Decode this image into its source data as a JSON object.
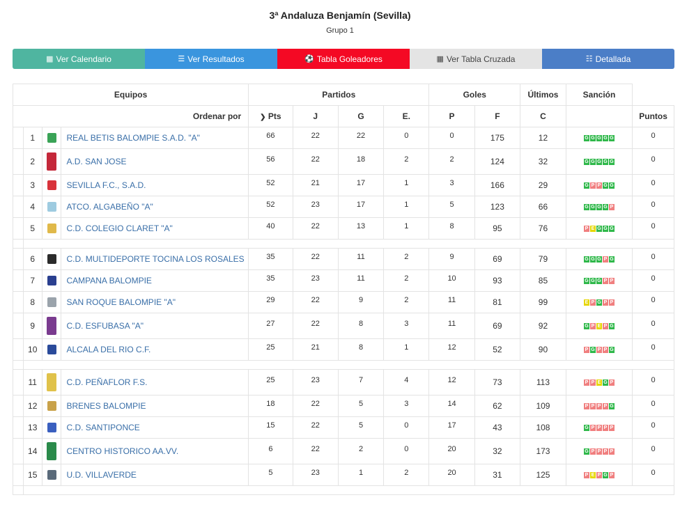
{
  "page": {
    "title": "3ª Andaluza Benjamín (Sevilla)",
    "subtitle": "Grupo 1"
  },
  "buttons": [
    {
      "icon": "calendar-icon",
      "glyph": "▦",
      "label": "Ver Calendario"
    },
    {
      "icon": "list-icon",
      "glyph": "☰",
      "label": "Ver Resultados"
    },
    {
      "icon": "soccer-ball-icon",
      "glyph": "⚽",
      "label": "Tabla Goleadores"
    },
    {
      "icon": "table-grid-icon",
      "glyph": "▦",
      "label": "Ver Tabla Cruzada"
    },
    {
      "icon": "detail-list-icon",
      "glyph": "☷",
      "label": "Detallada"
    }
  ],
  "headers": {
    "equipos": "Equipos",
    "partidos": "Partidos",
    "goles": "Goles",
    "ultimos": "Últimos",
    "sancion": "Sanción",
    "ordenar": "Ordenar por",
    "pts": "Pts",
    "j": "J",
    "g": "G",
    "e": "E.",
    "p": "P",
    "f": "F",
    "c": "C",
    "puntos": "Puntos"
  },
  "colors": {
    "win": "#2fb84a",
    "loss": "#f07f7f",
    "draw": "#e6d600",
    "link": "#3a6fa8"
  },
  "teams": [
    {
      "pos": "1",
      "name": "REAL BETIS BALOMPIE S.A.D. \"A\"",
      "pts": "66",
      "j": "22",
      "g": "22",
      "e": "0",
      "p": "0",
      "f": "175",
      "c": "12",
      "last": [
        "G",
        "G",
        "G",
        "G",
        "G"
      ],
      "sancion": "0",
      "logo": "#3aa357"
    },
    {
      "pos": "2",
      "name": "A.D. SAN JOSE",
      "pts": "56",
      "j": "22",
      "g": "18",
      "e": "2",
      "p": "2",
      "f": "124",
      "c": "32",
      "last": [
        "G",
        "G",
        "G",
        "G",
        "G"
      ],
      "sancion": "0",
      "logo": "#c4283a"
    },
    {
      "pos": "3",
      "name": "SEVILLA F.C., S.A.D.",
      "pts": "52",
      "j": "21",
      "g": "17",
      "e": "1",
      "p": "3",
      "f": "166",
      "c": "29",
      "last": [
        "G",
        "P",
        "P",
        "G",
        "G"
      ],
      "sancion": "0",
      "logo": "#d8333b"
    },
    {
      "pos": "4",
      "name": "ATCO. ALGABEÑO \"A\"",
      "pts": "52",
      "j": "23",
      "g": "17",
      "e": "1",
      "p": "5",
      "f": "123",
      "c": "66",
      "last": [
        "G",
        "G",
        "G",
        "G",
        "P"
      ],
      "sancion": "0",
      "logo": "#9ecbe0"
    },
    {
      "pos": "5",
      "name": "C.D. COLEGIO CLARET \"A\"",
      "pts": "40",
      "j": "22",
      "g": "13",
      "e": "1",
      "p": "8",
      "f": "95",
      "c": "76",
      "last": [
        "P",
        "E",
        "G",
        "G",
        "G"
      ],
      "sancion": "0",
      "logo": "#e0b94a"
    },
    {
      "pos": "6",
      "name": "C.D. MULTIDEPORTE TOCINA LOS ROSALES",
      "pts": "35",
      "j": "22",
      "g": "11",
      "e": "2",
      "p": "9",
      "f": "69",
      "c": "79",
      "last": [
        "G",
        "G",
        "G",
        "P",
        "G"
      ],
      "sancion": "0",
      "logo": "#2b2b2b"
    },
    {
      "pos": "7",
      "name": "CAMPANA BALOMPIE",
      "pts": "35",
      "j": "23",
      "g": "11",
      "e": "2",
      "p": "10",
      "f": "93",
      "c": "85",
      "last": [
        "G",
        "G",
        "G",
        "P",
        "P"
      ],
      "sancion": "0",
      "logo": "#2a3f8f"
    },
    {
      "pos": "8",
      "name": "SAN ROQUE BALOMPIE \"A\"",
      "pts": "29",
      "j": "22",
      "g": "9",
      "e": "2",
      "p": "11",
      "f": "81",
      "c": "99",
      "last": [
        "E",
        "P",
        "G",
        "P",
        "P"
      ],
      "sancion": "0",
      "logo": "#9aa3ab"
    },
    {
      "pos": "9",
      "name": "C.D. ESFUBASA \"A\"",
      "pts": "27",
      "j": "22",
      "g": "8",
      "e": "3",
      "p": "11",
      "f": "69",
      "c": "92",
      "last": [
        "G",
        "P",
        "E",
        "P",
        "G"
      ],
      "sancion": "0",
      "logo": "#7a3b8f"
    },
    {
      "pos": "10",
      "name": "ALCALA DEL RIO C.F.",
      "pts": "25",
      "j": "21",
      "g": "8",
      "e": "1",
      "p": "12",
      "f": "52",
      "c": "90",
      "last": [
        "P",
        "G",
        "P",
        "P",
        "G"
      ],
      "sancion": "0",
      "logo": "#2a4a9a"
    },
    {
      "pos": "11",
      "name": "C.D. PEÑAFLOR F.S.",
      "pts": "25",
      "j": "23",
      "g": "7",
      "e": "4",
      "p": "12",
      "f": "73",
      "c": "113",
      "last": [
        "P",
        "P",
        "E",
        "G",
        "P"
      ],
      "sancion": "0",
      "logo": "#e0c24a"
    },
    {
      "pos": "12",
      "name": "BRENES BALOMPIE",
      "pts": "18",
      "j": "22",
      "g": "5",
      "e": "3",
      "p": "14",
      "f": "62",
      "c": "109",
      "last": [
        "P",
        "P",
        "P",
        "P",
        "G"
      ],
      "sancion": "0",
      "logo": "#c9a24a"
    },
    {
      "pos": "13",
      "name": "C.D. SANTIPONCE",
      "pts": "15",
      "j": "22",
      "g": "5",
      "e": "0",
      "p": "17",
      "f": "43",
      "c": "108",
      "last": [
        "G",
        "P",
        "P",
        "P",
        "P"
      ],
      "sancion": "0",
      "logo": "#3a5fbf"
    },
    {
      "pos": "14",
      "name": "CENTRO HISTORICO AA.VV.",
      "pts": "6",
      "j": "22",
      "g": "2",
      "e": "0",
      "p": "20",
      "f": "32",
      "c": "173",
      "last": [
        "G",
        "P",
        "P",
        "P",
        "P"
      ],
      "sancion": "0",
      "logo": "#2a8a4a"
    },
    {
      "pos": "15",
      "name": "U.D. VILLAVERDE",
      "pts": "5",
      "j": "23",
      "g": "1",
      "e": "2",
      "p": "20",
      "f": "31",
      "c": "125",
      "last": [
        "P",
        "E",
        "P",
        "G",
        "P"
      ],
      "sancion": "0",
      "logo": "#5a6a7a"
    }
  ]
}
